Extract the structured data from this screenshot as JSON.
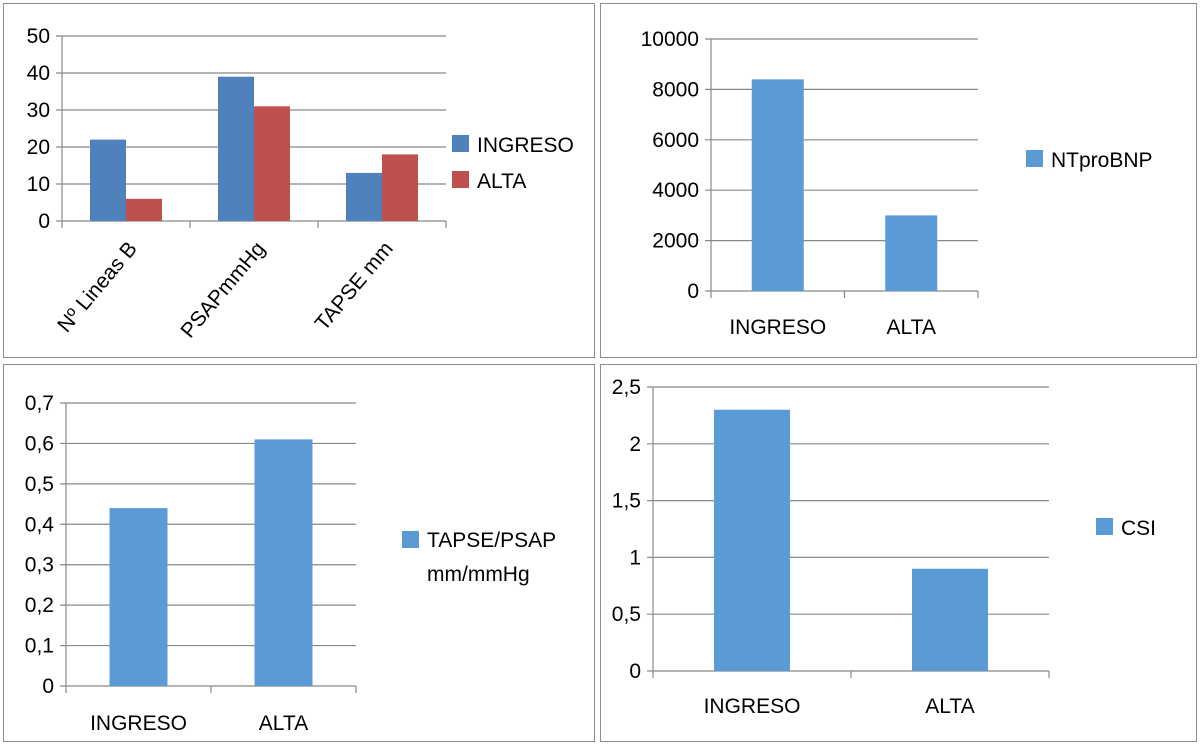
{
  "colors": {
    "ingreso_two_series": "#4F81BD",
    "alta_two_series": "#C0504D",
    "single_series": "#5B9BD5",
    "gridline": "#888888",
    "panel_border": "#8c8c8c"
  },
  "chart_data": [
    {
      "type": "bar",
      "categories": [
        "Nº Lineas B",
        "PSAPmmHg",
        "TAPSE mm"
      ],
      "series": [
        {
          "name": "INGRESO",
          "values": [
            22,
            39,
            13
          ]
        },
        {
          "name": "ALTA",
          "values": [
            6,
            31,
            18
          ]
        }
      ],
      "y_ticks": [
        "0",
        "10",
        "20",
        "30",
        "40",
        "50"
      ],
      "ylim": [
        0,
        50
      ],
      "legend": "right",
      "grid": true,
      "x_labels_rotated": true
    },
    {
      "type": "bar",
      "categories": [
        "INGRESO",
        "ALTA"
      ],
      "series": [
        {
          "name": "NTproBNP",
          "values": [
            8400,
            3000
          ]
        }
      ],
      "y_ticks": [
        "0",
        "2000",
        "4000",
        "6000",
        "8000",
        "10000"
      ],
      "ylim": [
        0,
        10000
      ],
      "legend": "right",
      "grid": true
    },
    {
      "type": "bar",
      "categories": [
        "INGRESO",
        "ALTA"
      ],
      "series": [
        {
          "name": "TAPSE/PSAP mm/mmHg",
          "name_lines": [
            "TAPSE/PSAP",
            "mm/mmHg"
          ],
          "values": [
            0.44,
            0.61
          ]
        }
      ],
      "y_ticks": [
        "0",
        "0,1",
        "0,2",
        "0,3",
        "0,4",
        "0,5",
        "0,6",
        "0,7"
      ],
      "ylim": [
        0,
        0.7
      ],
      "legend": "right",
      "grid": true
    },
    {
      "type": "bar",
      "categories": [
        "INGRESO",
        "ALTA"
      ],
      "series": [
        {
          "name": "CSI",
          "values": [
            2.3,
            0.9
          ]
        }
      ],
      "y_ticks": [
        "0",
        "0,5",
        "1",
        "1,5",
        "2",
        "2,5"
      ],
      "ylim": [
        0,
        2.5
      ],
      "legend": "right",
      "grid": true
    }
  ]
}
